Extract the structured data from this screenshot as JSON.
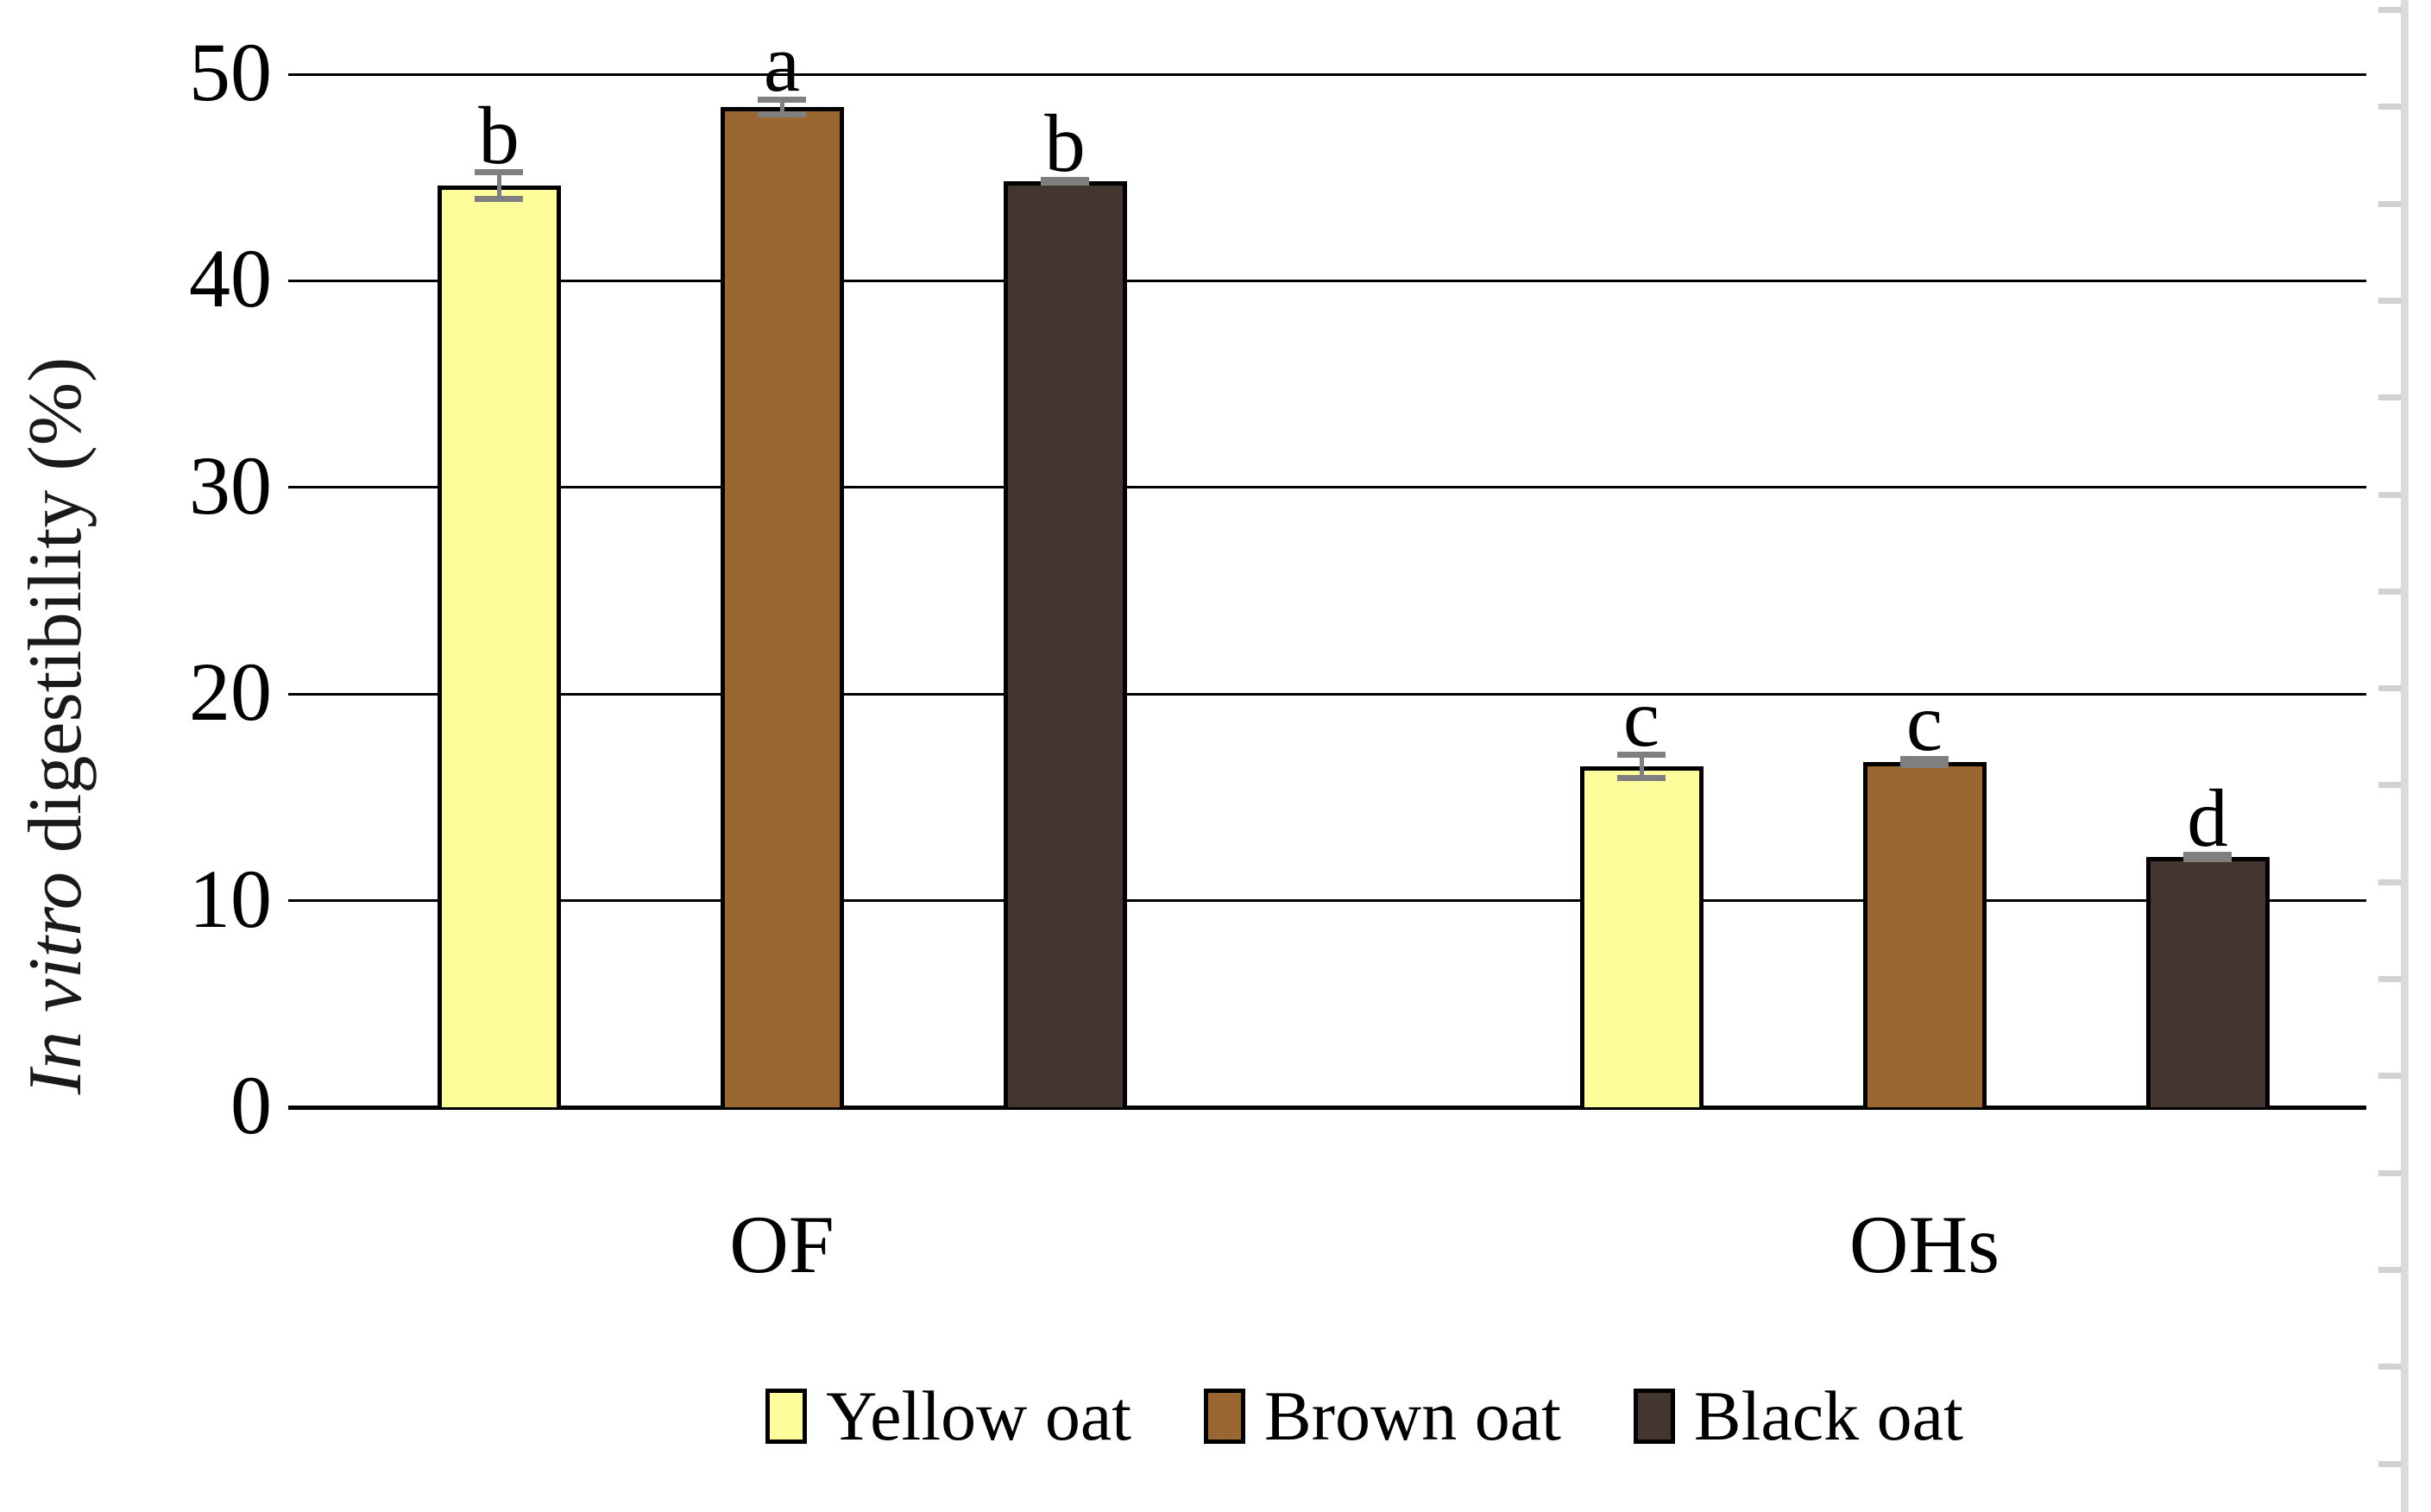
{
  "chart_data": {
    "type": "bar",
    "title": "",
    "ylabel": "In vitro digestibility (%)",
    "ylabel_parts": {
      "italic": "In vitro",
      "regular": " digestibility (%)"
    },
    "xlabel": "",
    "ylim": [
      0,
      50
    ],
    "ytick_interval": 10,
    "yticks": [
      0,
      10,
      20,
      30,
      40,
      50
    ],
    "grid": true,
    "legend_position": "bottom",
    "error_bar_color": "#7f7f7f",
    "categories": [
      "OF",
      "OHs"
    ],
    "series": [
      {
        "name": "Yellow oat",
        "color": "#fdfd9c",
        "values": [
          44.6,
          16.5
        ],
        "errors": [
          0.8,
          0.7
        ],
        "letters": [
          "b",
          "c"
        ]
      },
      {
        "name": "Brown oat",
        "color": "#9a6732",
        "values": [
          48.4,
          16.7
        ],
        "errors": [
          0.5,
          0.3
        ],
        "letters": [
          "a",
          "c"
        ]
      },
      {
        "name": "Black oat",
        "color": "#433631",
        "values": [
          44.8,
          12.1
        ],
        "errors": [
          0.2,
          0.25
        ],
        "letters": [
          "b",
          "d"
        ]
      }
    ]
  }
}
